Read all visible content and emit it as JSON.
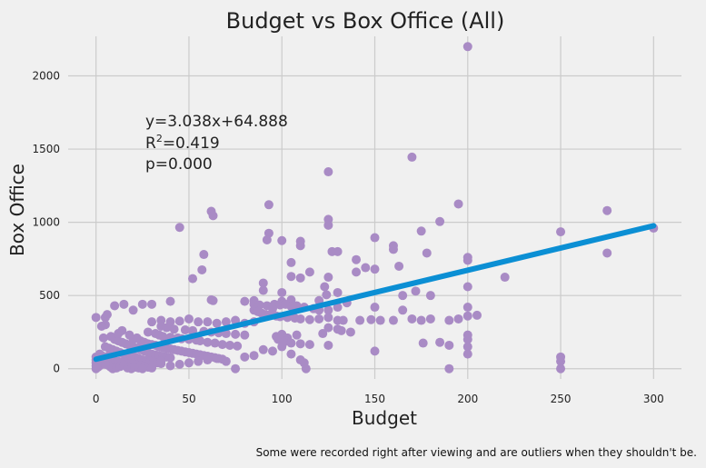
{
  "chart_data": {
    "type": "scatter",
    "title": "Budget vs Box Office (All)",
    "xlabel": "Budget",
    "ylabel": "Box Office",
    "xlim": [
      -15,
      315
    ],
    "ylim": [
      -70,
      2270
    ],
    "xticks": [
      0,
      50,
      100,
      150,
      200,
      250,
      300
    ],
    "yticks": [
      0,
      500,
      1000,
      1500,
      2000
    ],
    "grid": true,
    "point_color": "#a98bc5",
    "line_color": "#0b8fd4",
    "fit": {
      "slope": 3.038,
      "intercept": 64.888,
      "x_range": [
        0,
        300
      ]
    },
    "annotation": {
      "equation": "y=3.038x+64.888",
      "r2_prefix": "R",
      "r2_sup": "2",
      "r2_value": "=0.419",
      "p_value": "p=0.000"
    },
    "footnote": "Some were recorded right after viewing and are outliers when they shouldn't be.",
    "points": [
      [
        200,
        2200
      ],
      [
        170,
        1445
      ],
      [
        125,
        1345
      ],
      [
        195,
        1125
      ],
      [
        93,
        1120
      ],
      [
        275,
        1080
      ],
      [
        62,
        1075
      ],
      [
        63,
        1045
      ],
      [
        125,
        1020
      ],
      [
        185,
        1005
      ],
      [
        125,
        980
      ],
      [
        45,
        965
      ],
      [
        300,
        960
      ],
      [
        175,
        940
      ],
      [
        250,
        935
      ],
      [
        93,
        925
      ],
      [
        92,
        880
      ],
      [
        100,
        875
      ],
      [
        150,
        895
      ],
      [
        110,
        870
      ],
      [
        110,
        840
      ],
      [
        160,
        840
      ],
      [
        130,
        800
      ],
      [
        127,
        800
      ],
      [
        160,
        815
      ],
      [
        178,
        790
      ],
      [
        200,
        760
      ],
      [
        58,
        780
      ],
      [
        200,
        740
      ],
      [
        140,
        745
      ],
      [
        105,
        725
      ],
      [
        163,
        700
      ],
      [
        145,
        690
      ],
      [
        150,
        680
      ],
      [
        115,
        660
      ],
      [
        140,
        660
      ],
      [
        57,
        675
      ],
      [
        125,
        625
      ],
      [
        220,
        625
      ],
      [
        105,
        630
      ],
      [
        110,
        620
      ],
      [
        90,
        585
      ],
      [
        52,
        615
      ],
      [
        123,
        560
      ],
      [
        200,
        560
      ],
      [
        90,
        535
      ],
      [
        100,
        520
      ],
      [
        172,
        530
      ],
      [
        130,
        520
      ],
      [
        180,
        500
      ],
      [
        124,
        505
      ],
      [
        165,
        500
      ],
      [
        85,
        465
      ],
      [
        62,
        470
      ],
      [
        63,
        465
      ],
      [
        80,
        460
      ],
      [
        40,
        460
      ],
      [
        100,
        460
      ],
      [
        105,
        470
      ],
      [
        120,
        465
      ],
      [
        135,
        450
      ],
      [
        150,
        420
      ],
      [
        165,
        400
      ],
      [
        200,
        420
      ],
      [
        85,
        440
      ],
      [
        88,
        435
      ],
      [
        92,
        430
      ],
      [
        96,
        440
      ],
      [
        99,
        435
      ],
      [
        102,
        440
      ],
      [
        105,
        425
      ],
      [
        108,
        430
      ],
      [
        112,
        420
      ],
      [
        117,
        410
      ],
      [
        95,
        410
      ],
      [
        120,
        400
      ],
      [
        125,
        400
      ],
      [
        130,
        420
      ],
      [
        85,
        400
      ],
      [
        87,
        390
      ],
      [
        89,
        380
      ],
      [
        91,
        370
      ],
      [
        93,
        365
      ],
      [
        97,
        360
      ],
      [
        99,
        355
      ],
      [
        103,
        350
      ],
      [
        107,
        345
      ],
      [
        110,
        340
      ],
      [
        115,
        335
      ],
      [
        120,
        340
      ],
      [
        125,
        350
      ],
      [
        130,
        330
      ],
      [
        133,
        330
      ],
      [
        142,
        330
      ],
      [
        148,
        335
      ],
      [
        153,
        330
      ],
      [
        160,
        330
      ],
      [
        170,
        340
      ],
      [
        175,
        330
      ],
      [
        180,
        340
      ],
      [
        190,
        330
      ],
      [
        195,
        340
      ],
      [
        200,
        360
      ],
      [
        205,
        365
      ],
      [
        125,
        280
      ],
      [
        130,
        270
      ],
      [
        132,
        260
      ],
      [
        137,
        250
      ],
      [
        122,
        240
      ],
      [
        108,
        230
      ],
      [
        100,
        235
      ],
      [
        97,
        220
      ],
      [
        103,
        210
      ],
      [
        98,
        200
      ],
      [
        102,
        190
      ],
      [
        101,
        180
      ],
      [
        105,
        175
      ],
      [
        110,
        170
      ],
      [
        115,
        165
      ],
      [
        125,
        160
      ],
      [
        0,
        350
      ],
      [
        5,
        350
      ],
      [
        10,
        430
      ],
      [
        15,
        440
      ],
      [
        20,
        400
      ],
      [
        25,
        440
      ],
      [
        30,
        440
      ],
      [
        35,
        330
      ],
      [
        40,
        320
      ],
      [
        45,
        325
      ],
      [
        50,
        340
      ],
      [
        55,
        320
      ],
      [
        60,
        320
      ],
      [
        65,
        310
      ],
      [
        70,
        320
      ],
      [
        75,
        330
      ],
      [
        80,
        310
      ],
      [
        85,
        320
      ],
      [
        30,
        320
      ],
      [
        35,
        290
      ],
      [
        38,
        280
      ],
      [
        42,
        270
      ],
      [
        48,
        265
      ],
      [
        52,
        260
      ],
      [
        58,
        255
      ],
      [
        62,
        250
      ],
      [
        66,
        245
      ],
      [
        70,
        240
      ],
      [
        75,
        235
      ],
      [
        80,
        230
      ],
      [
        28,
        250
      ],
      [
        32,
        240
      ],
      [
        34,
        230
      ],
      [
        36,
        220
      ],
      [
        40,
        215
      ],
      [
        44,
        210
      ],
      [
        46,
        205
      ],
      [
        50,
        200
      ],
      [
        54,
        195
      ],
      [
        56,
        190
      ],
      [
        60,
        180
      ],
      [
        64,
        175
      ],
      [
        68,
        165
      ],
      [
        72,
        160
      ],
      [
        76,
        155
      ],
      [
        20,
        200
      ],
      [
        22,
        210
      ],
      [
        24,
        190
      ],
      [
        26,
        180
      ],
      [
        28,
        170
      ],
      [
        30,
        165
      ],
      [
        32,
        160
      ],
      [
        34,
        150
      ],
      [
        36,
        145
      ],
      [
        38,
        140
      ],
      [
        40,
        135
      ],
      [
        42,
        130
      ],
      [
        44,
        125
      ],
      [
        46,
        120
      ],
      [
        48,
        115
      ],
      [
        50,
        110
      ],
      [
        52,
        105
      ],
      [
        54,
        100
      ],
      [
        56,
        95
      ],
      [
        58,
        90
      ],
      [
        60,
        85
      ],
      [
        62,
        80
      ],
      [
        64,
        75
      ],
      [
        66,
        70
      ],
      [
        68,
        65
      ],
      [
        10,
        200
      ],
      [
        12,
        190
      ],
      [
        14,
        180
      ],
      [
        16,
        170
      ],
      [
        18,
        160
      ],
      [
        20,
        150
      ],
      [
        22,
        140
      ],
      [
        24,
        130
      ],
      [
        26,
        120
      ],
      [
        28,
        110
      ],
      [
        30,
        100
      ],
      [
        32,
        95
      ],
      [
        34,
        90
      ],
      [
        36,
        85
      ],
      [
        38,
        80
      ],
      [
        40,
        75
      ],
      [
        5,
        150
      ],
      [
        7,
        140
      ],
      [
        9,
        130
      ],
      [
        11,
        120
      ],
      [
        13,
        110
      ],
      [
        15,
        100
      ],
      [
        17,
        90
      ],
      [
        19,
        85
      ],
      [
        21,
        80
      ],
      [
        23,
        70
      ],
      [
        25,
        60
      ],
      [
        27,
        55
      ],
      [
        29,
        50
      ],
      [
        31,
        45
      ],
      [
        33,
        40
      ],
      [
        35,
        35
      ],
      [
        2,
        100
      ],
      [
        3,
        90
      ],
      [
        4,
        80
      ],
      [
        6,
        70
      ],
      [
        8,
        60
      ],
      [
        10,
        55
      ],
      [
        12,
        50
      ],
      [
        14,
        45
      ],
      [
        16,
        40
      ],
      [
        18,
        35
      ],
      [
        20,
        30
      ],
      [
        22,
        25
      ],
      [
        24,
        20
      ],
      [
        26,
        15
      ],
      [
        28,
        10
      ],
      [
        30,
        5
      ],
      [
        0,
        0
      ],
      [
        1,
        10
      ],
      [
        2,
        20
      ],
      [
        3,
        30
      ],
      [
        4,
        40
      ],
      [
        5,
        50
      ],
      [
        6,
        60
      ],
      [
        7,
        20
      ],
      [
        8,
        10
      ],
      [
        9,
        0
      ],
      [
        11,
        5
      ],
      [
        13,
        15
      ],
      [
        15,
        25
      ],
      [
        17,
        5
      ],
      [
        19,
        0
      ],
      [
        21,
        10
      ],
      [
        23,
        5
      ],
      [
        25,
        0
      ],
      [
        0,
        80
      ],
      [
        0,
        60
      ],
      [
        0,
        40
      ],
      [
        0,
        20
      ],
      [
        1,
        70
      ],
      [
        3,
        50
      ],
      [
        5,
        30
      ],
      [
        7,
        90
      ],
      [
        9,
        100
      ],
      [
        6,
        370
      ],
      [
        5,
        300
      ],
      [
        3,
        290
      ],
      [
        8,
        220
      ],
      [
        4,
        210
      ],
      [
        12,
        240
      ],
      [
        14,
        260
      ],
      [
        18,
        230
      ],
      [
        35,
        50
      ],
      [
        40,
        20
      ],
      [
        45,
        30
      ],
      [
        50,
        40
      ],
      [
        55,
        50
      ],
      [
        60,
        60
      ],
      [
        65,
        70
      ],
      [
        70,
        50
      ],
      [
        75,
        0
      ],
      [
        80,
        80
      ],
      [
        85,
        90
      ],
      [
        90,
        130
      ],
      [
        95,
        120
      ],
      [
        100,
        150
      ],
      [
        105,
        100
      ],
      [
        110,
        60
      ],
      [
        112,
        40
      ],
      [
        113,
        0
      ],
      [
        150,
        120
      ],
      [
        190,
        0
      ],
      [
        200,
        150
      ],
      [
        200,
        100
      ],
      [
        200,
        230
      ],
      [
        200,
        200
      ],
      [
        250,
        50
      ],
      [
        250,
        0
      ],
      [
        250,
        80
      ],
      [
        275,
        790
      ],
      [
        185,
        180
      ],
      [
        190,
        160
      ],
      [
        176,
        175
      ]
    ]
  }
}
